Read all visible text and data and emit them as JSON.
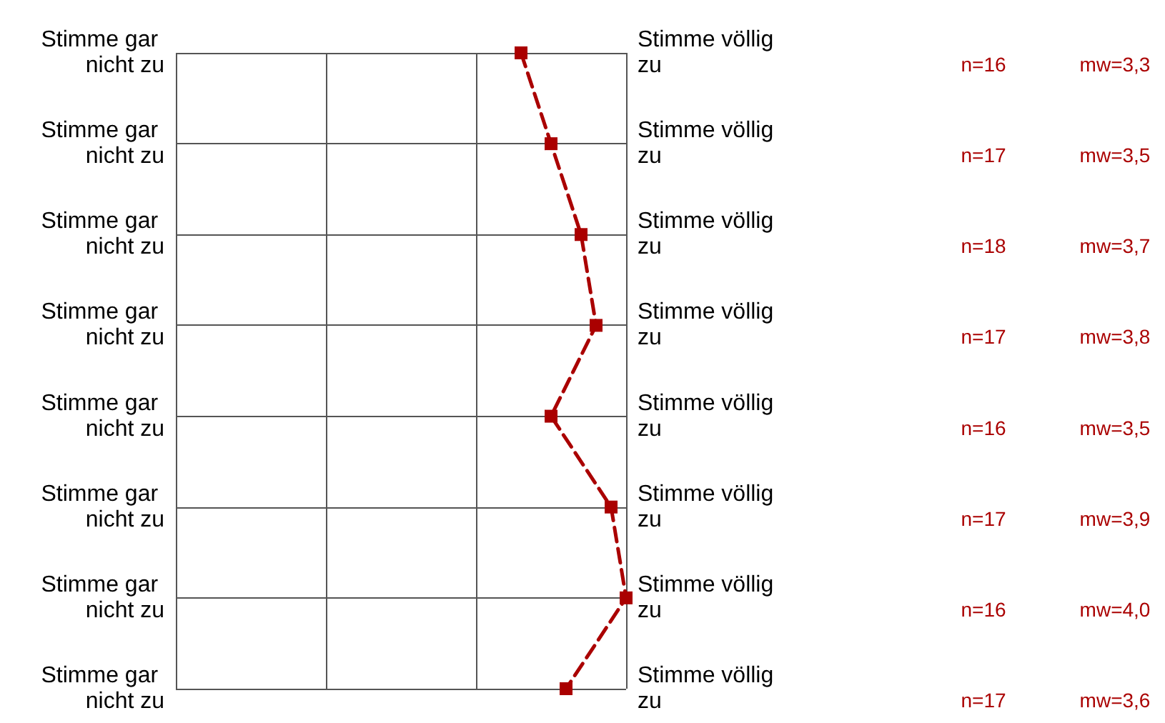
{
  "chart_data": {
    "type": "line",
    "orientation": "horizontal",
    "categories": [
      "Stimme gar nicht zu",
      "Stimme gar nicht zu",
      "Stimme gar nicht zu",
      "Stimme gar nicht zu",
      "Stimme gar nicht zu",
      "Stimme gar nicht zu",
      "Stimme gar nicht zu",
      "Stimme gar nicht zu"
    ],
    "y2_categories": [
      "Stimme völlig zu",
      "Stimme völlig zu",
      "Stimme völlig zu",
      "Stimme völlig zu",
      "Stimme völlig zu",
      "Stimme völlig zu",
      "Stimme völlig zu",
      "Stimme völlig zu"
    ],
    "series": [
      {
        "color": "#aa0000",
        "values": [
          3.3,
          3.5,
          3.7,
          3.8,
          3.5,
          3.9,
          4.0,
          3.6
        ],
        "value_labels": [
          "mw=3,3",
          "mw=3,5",
          "mw=3,7",
          "mw=3,8",
          "mw=3,5",
          "mw=3,9",
          "mw=4,0",
          "mw=3,6"
        ]
      }
    ],
    "annotations": [
      "n=16",
      "n=17",
      "n=18",
      "n=17",
      "n=16",
      "n=17",
      "n=16",
      "n=17"
    ],
    "xlim": [
      1,
      4
    ],
    "xticks": [
      {
        "value": 1,
        "label": null
      },
      {
        "value": 2,
        "label": null
      },
      {
        "value": 3,
        "label": null
      },
      {
        "value": 4,
        "label": null
      }
    ],
    "tick_labels": "y",
    "grid": true,
    "marker": "square",
    "line_style": "dashed"
  }
}
